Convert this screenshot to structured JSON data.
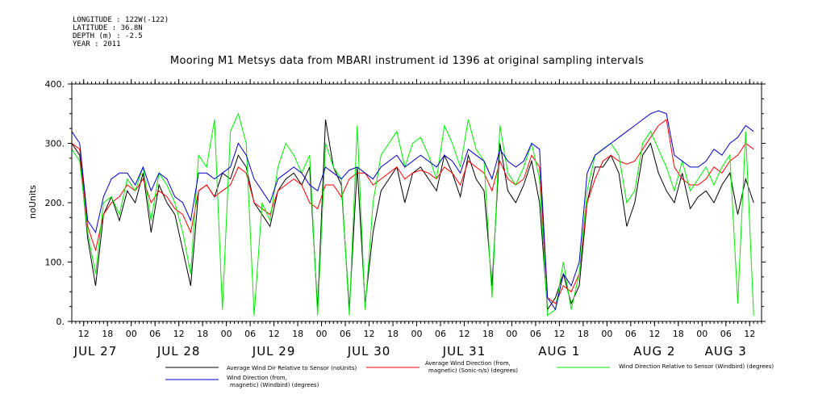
{
  "meta": {
    "longitude": "LONGITUDE : 122W(-122)",
    "latitude": "LATITUDE : 36.8N",
    "depth": "DEPTH (m) : -2.5",
    "year": "YEAR : 2011"
  },
  "chart_data": {
    "type": "line",
    "title": "Mooring M1 Metsys data from MBARI instrument id 1396 at original sampling intervals",
    "ylabel": "noUnits",
    "ylim": [
      0,
      400
    ],
    "yticks": [
      0,
      100,
      200,
      300,
      400
    ],
    "yticklabels": [
      "0.",
      "100.",
      "200.",
      "300.",
      "400."
    ],
    "xlim": [
      0,
      174
    ],
    "hour_ticks": [
      {
        "x": 3,
        "label": "12"
      },
      {
        "x": 9,
        "label": "18"
      },
      {
        "x": 15,
        "label": "00"
      },
      {
        "x": 21,
        "label": "06"
      },
      {
        "x": 27,
        "label": "12"
      },
      {
        "x": 33,
        "label": "18"
      },
      {
        "x": 39,
        "label": "00"
      },
      {
        "x": 45,
        "label": "06"
      },
      {
        "x": 51,
        "label": "12"
      },
      {
        "x": 57,
        "label": "18"
      },
      {
        "x": 63,
        "label": "00"
      },
      {
        "x": 69,
        "label": "06"
      },
      {
        "x": 75,
        "label": "12"
      },
      {
        "x": 81,
        "label": "18"
      },
      {
        "x": 87,
        "label": "00"
      },
      {
        "x": 93,
        "label": "06"
      },
      {
        "x": 99,
        "label": "12"
      },
      {
        "x": 105,
        "label": "18"
      },
      {
        "x": 111,
        "label": "00"
      },
      {
        "x": 117,
        "label": "06"
      },
      {
        "x": 123,
        "label": "12"
      },
      {
        "x": 129,
        "label": "18"
      },
      {
        "x": 135,
        "label": "00"
      },
      {
        "x": 141,
        "label": "06"
      },
      {
        "x": 147,
        "label": "12"
      },
      {
        "x": 153,
        "label": "18"
      },
      {
        "x": 159,
        "label": "00"
      },
      {
        "x": 165,
        "label": "06"
      },
      {
        "x": 171,
        "label": "12"
      }
    ],
    "day_labels": [
      {
        "x": 6,
        "label": "JUL 27"
      },
      {
        "x": 27,
        "label": "JUL 28"
      },
      {
        "x": 51,
        "label": "JUL 29"
      },
      {
        "x": 75,
        "label": "JUL 30"
      },
      {
        "x": 99,
        "label": "JUL 31"
      },
      {
        "x": 123,
        "label": "AUG  1"
      },
      {
        "x": 147,
        "label": "AUG  2"
      },
      {
        "x": 165,
        "label": "AUG  3"
      }
    ],
    "series": [
      {
        "name": "Average Wind Dir Relative to Sensor (noUnits)",
        "color": "#000000",
        "x": [
          0,
          2,
          4,
          6,
          8,
          10,
          12,
          14,
          16,
          18,
          20,
          22,
          24,
          26,
          28,
          30,
          32,
          34,
          36,
          38,
          40,
          42,
          44,
          46,
          48,
          50,
          52,
          54,
          56,
          58,
          60,
          62,
          64,
          66,
          68,
          70,
          72,
          74,
          76,
          78,
          80,
          82,
          84,
          86,
          88,
          90,
          92,
          94,
          96,
          98,
          100,
          102,
          104,
          106,
          108,
          110,
          112,
          114,
          116,
          118,
          120,
          122,
          124,
          126,
          128,
          130,
          132,
          134,
          136,
          138,
          140,
          142,
          144,
          146,
          148,
          150,
          152,
          154,
          156,
          158,
          160,
          162,
          164,
          166,
          168,
          170,
          172
        ],
        "values": [
          300,
          280,
          140,
          60,
          180,
          210,
          170,
          220,
          200,
          250,
          150,
          230,
          200,
          180,
          120,
          60,
          220,
          230,
          210,
          250,
          240,
          280,
          260,
          200,
          180,
          160,
          220,
          240,
          250,
          230,
          260,
          20,
          340,
          260,
          230,
          20,
          260,
          30,
          150,
          220,
          240,
          260,
          200,
          250,
          260,
          240,
          220,
          280,
          250,
          210,
          280,
          240,
          220,
          60,
          300,
          220,
          200,
          230,
          270,
          200,
          20,
          40,
          80,
          30,
          60,
          200,
          260,
          260,
          280,
          250,
          160,
          200,
          280,
          300,
          250,
          220,
          200,
          250,
          190,
          210,
          220,
          200,
          230,
          250,
          180,
          240,
          200
        ]
      },
      {
        "name": "Average Wind Direction (from, magnetic) (Sonic-n/s) (degrees)",
        "color": "#ff0000",
        "x": [
          0,
          2,
          4,
          6,
          8,
          10,
          12,
          14,
          16,
          18,
          20,
          22,
          24,
          26,
          28,
          30,
          32,
          34,
          36,
          38,
          40,
          42,
          44,
          46,
          48,
          50,
          52,
          54,
          56,
          58,
          60,
          62,
          64,
          66,
          68,
          70,
          72,
          74,
          76,
          78,
          80,
          82,
          84,
          86,
          88,
          90,
          92,
          94,
          96,
          98,
          100,
          102,
          104,
          106,
          108,
          110,
          112,
          114,
          116,
          118,
          120,
          122,
          124,
          126,
          128,
          130,
          132,
          134,
          136,
          138,
          140,
          142,
          144,
          146,
          148,
          150,
          152,
          154,
          156,
          158,
          160,
          162,
          164,
          166,
          168,
          170,
          172
        ],
        "values": [
          300,
          290,
          160,
          120,
          180,
          200,
          210,
          230,
          220,
          240,
          200,
          220,
          210,
          190,
          180,
          150,
          220,
          230,
          210,
          220,
          230,
          260,
          250,
          200,
          190,
          180,
          220,
          230,
          240,
          230,
          200,
          190,
          230,
          230,
          210,
          240,
          250,
          250,
          230,
          240,
          250,
          260,
          240,
          250,
          255,
          250,
          240,
          260,
          250,
          230,
          270,
          260,
          250,
          220,
          270,
          240,
          230,
          240,
          280,
          260,
          40,
          30,
          60,
          50,
          80,
          200,
          240,
          270,
          280,
          270,
          265,
          270,
          290,
          310,
          330,
          340,
          260,
          240,
          230,
          230,
          240,
          260,
          250,
          270,
          280,
          300,
          290
        ]
      },
      {
        "name": "Wind Direction Relative to Sensor (Windbird) (degrees)",
        "color": "#00ee00",
        "x": [
          0,
          2,
          4,
          6,
          8,
          10,
          12,
          14,
          16,
          18,
          20,
          22,
          24,
          26,
          28,
          30,
          32,
          34,
          36,
          38,
          40,
          42,
          44,
          46,
          48,
          50,
          52,
          54,
          56,
          58,
          60,
          62,
          64,
          66,
          68,
          70,
          72,
          74,
          76,
          78,
          80,
          82,
          84,
          86,
          88,
          90,
          92,
          94,
          96,
          98,
          100,
          102,
          104,
          106,
          108,
          110,
          112,
          114,
          116,
          118,
          120,
          122,
          124,
          126,
          128,
          130,
          132,
          134,
          136,
          138,
          140,
          142,
          144,
          146,
          148,
          150,
          152,
          154,
          156,
          158,
          160,
          162,
          164,
          166,
          168,
          170,
          172
        ],
        "values": [
          290,
          270,
          150,
          80,
          200,
          210,
          180,
          240,
          220,
          260,
          170,
          250,
          230,
          200,
          150,
          80,
          280,
          260,
          340,
          20,
          320,
          350,
          300,
          10,
          200,
          170,
          260,
          300,
          280,
          250,
          280,
          10,
          300,
          260,
          240,
          10,
          330,
          20,
          200,
          280,
          300,
          320,
          260,
          300,
          310,
          280,
          240,
          330,
          300,
          260,
          340,
          290,
          270,
          40,
          330,
          250,
          230,
          260,
          300,
          240,
          10,
          20,
          100,
          20,
          80,
          220,
          280,
          290,
          300,
          280,
          200,
          220,
          300,
          320,
          290,
          260,
          220,
          270,
          220,
          240,
          260,
          230,
          260,
          280,
          30,
          320,
          10
        ]
      },
      {
        "name": "Wind Direction (from, magnetic) (Windbird) (degrees)",
        "color": "#0000cc",
        "x": [
          0,
          2,
          4,
          6,
          8,
          10,
          12,
          14,
          16,
          18,
          20,
          22,
          24,
          26,
          28,
          30,
          32,
          34,
          36,
          38,
          40,
          42,
          44,
          46,
          48,
          50,
          52,
          54,
          56,
          58,
          60,
          62,
          64,
          66,
          68,
          70,
          72,
          74,
          76,
          78,
          80,
          82,
          84,
          86,
          88,
          90,
          92,
          94,
          96,
          98,
          100,
          102,
          104,
          106,
          108,
          110,
          112,
          114,
          116,
          118,
          120,
          122,
          124,
          126,
          128,
          130,
          132,
          134,
          136,
          138,
          140,
          142,
          144,
          146,
          148,
          150,
          152,
          154,
          156,
          158,
          160,
          162,
          164,
          166,
          168,
          170,
          172
        ],
        "values": [
          320,
          300,
          170,
          150,
          210,
          240,
          250,
          250,
          230,
          260,
          220,
          250,
          240,
          210,
          200,
          170,
          250,
          250,
          240,
          250,
          260,
          300,
          280,
          240,
          220,
          200,
          240,
          250,
          260,
          250,
          230,
          220,
          260,
          250,
          240,
          255,
          260,
          250,
          240,
          260,
          270,
          280,
          260,
          270,
          280,
          270,
          260,
          280,
          270,
          250,
          290,
          280,
          270,
          240,
          290,
          270,
          260,
          270,
          300,
          290,
          40,
          20,
          80,
          60,
          100,
          250,
          280,
          290,
          300,
          310,
          320,
          330,
          340,
          350,
          355,
          350,
          280,
          270,
          260,
          260,
          270,
          290,
          280,
          300,
          310,
          330,
          320
        ]
      }
    ],
    "legend": {
      "items": [
        {
          "label": "Average Wind Dir Relative to Sensor (noUnits)",
          "color": "#000000"
        },
        {
          "label_line1": "Average Wind Direction (from,",
          "label_line2": "magnetic) (Sonic-n/s) (degrees)",
          "color": "#ff0000"
        },
        {
          "label": "Wind Direction Relative to Sensor (Windbird) (degrees)",
          "color": "#00ee00"
        },
        {
          "label_line1": "Wind Direction (from,",
          "label_line2": "magnetic) (Windbird) (degrees)",
          "color": "#0000cc"
        }
      ]
    }
  }
}
